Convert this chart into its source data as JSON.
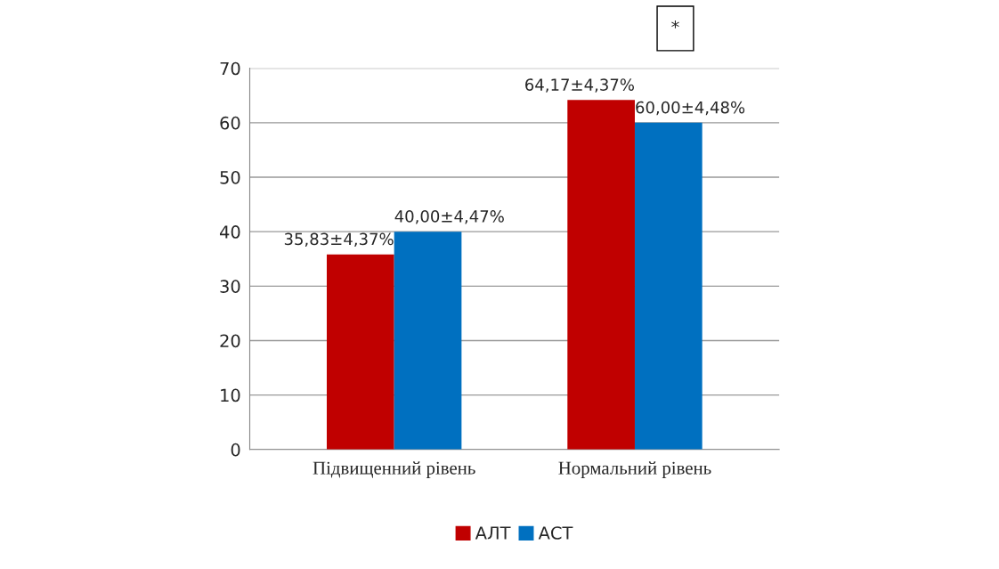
{
  "chart_data": {
    "type": "bar",
    "categories": [
      "Підвищенний рівень",
      "Нормальний рівень"
    ],
    "series": [
      {
        "name": "АЛТ",
        "color": "#c00000",
        "values": [
          35.83,
          64.17
        ],
        "value_labels": [
          "35,83±4,37%",
          "64,17±4,37%"
        ]
      },
      {
        "name": "АСТ",
        "color": "#0070c0",
        "values": [
          40.0,
          60.0
        ],
        "value_labels": [
          "40,00±4,47%",
          "60,00±4,48%"
        ]
      }
    ],
    "ylim": [
      0,
      70
    ],
    "yticks": [
      0,
      10,
      20,
      30,
      40,
      50,
      60,
      70
    ],
    "grid": "y",
    "legend": "bottom",
    "annotations": [
      "*"
    ]
  }
}
